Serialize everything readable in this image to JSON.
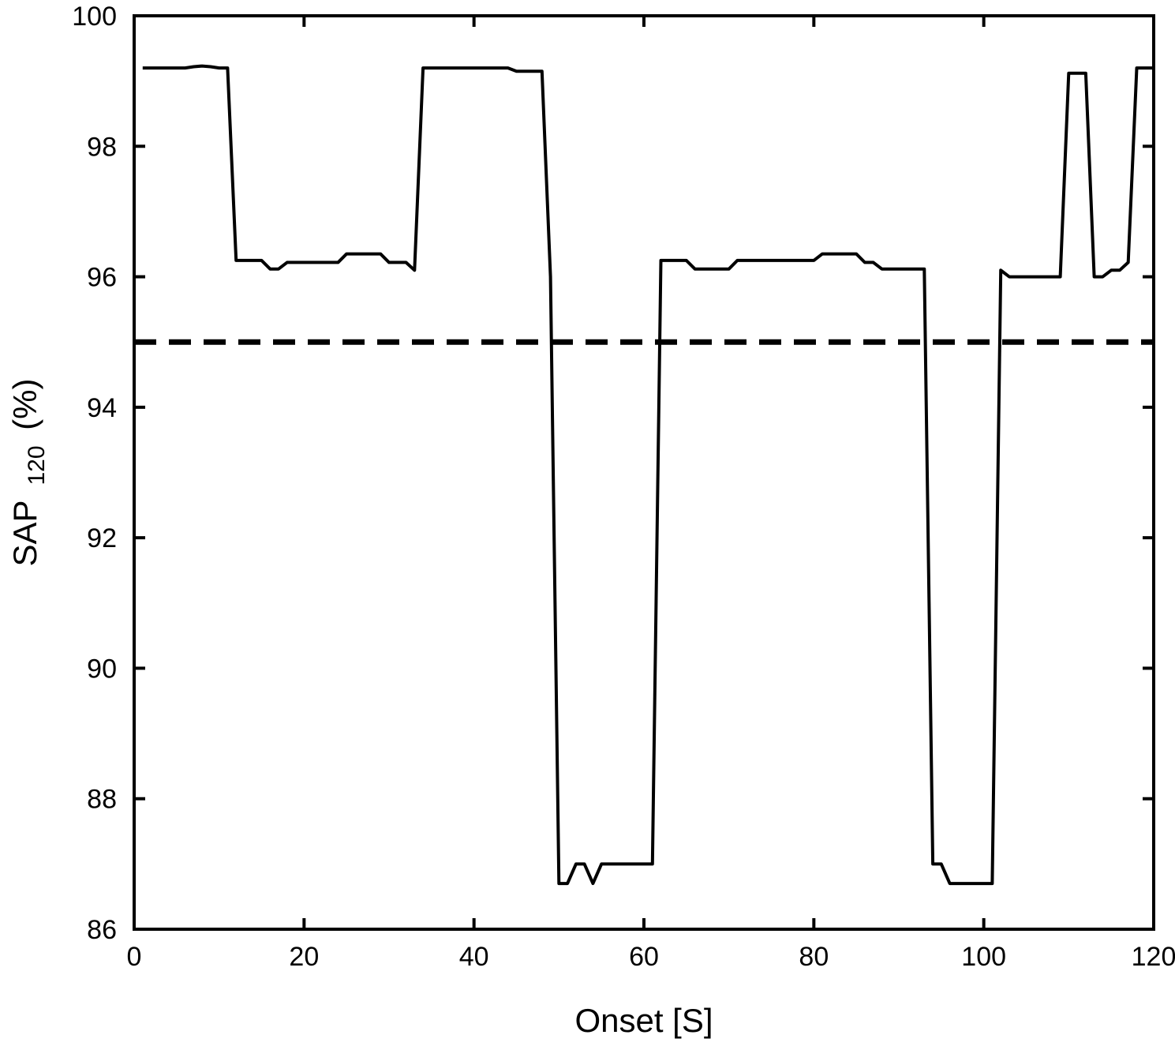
{
  "chart_data": {
    "type": "line",
    "xlabel": "Onset [S]",
    "ylabel_main": "SAP",
    "ylabel_sub": "120",
    "ylabel_unit": "(%)",
    "xlim": [
      0,
      120
    ],
    "ylim": [
      86,
      100
    ],
    "x_ticks": [
      0,
      20,
      40,
      60,
      80,
      100,
      120
    ],
    "y_ticks": [
      86,
      88,
      90,
      92,
      94,
      96,
      98,
      100
    ],
    "grid": false,
    "series": [
      {
        "style": "solid",
        "color": "#000000",
        "points": [
          [
            1,
            99.2
          ],
          [
            6,
            99.2
          ],
          [
            7,
            99.22
          ],
          [
            8,
            99.23
          ],
          [
            9,
            99.22
          ],
          [
            10,
            99.2
          ],
          [
            11,
            99.2
          ],
          [
            12,
            96.25
          ],
          [
            15,
            96.25
          ],
          [
            16,
            96.12
          ],
          [
            17,
            96.12
          ],
          [
            18,
            96.22
          ],
          [
            24,
            96.22
          ],
          [
            25,
            96.35
          ],
          [
            29,
            96.35
          ],
          [
            30,
            96.22
          ],
          [
            32,
            96.22
          ],
          [
            33,
            96.1
          ],
          [
            34,
            99.2
          ],
          [
            44,
            99.2
          ],
          [
            45,
            99.15
          ],
          [
            48,
            99.15
          ],
          [
            49,
            96.0
          ],
          [
            50,
            86.7
          ],
          [
            51,
            86.7
          ],
          [
            52,
            87.0
          ],
          [
            53,
            87.0
          ],
          [
            54,
            86.7
          ],
          [
            55,
            87.0
          ],
          [
            61,
            87.0
          ],
          [
            62,
            96.25
          ],
          [
            65,
            96.25
          ],
          [
            66,
            96.12
          ],
          [
            70,
            96.12
          ],
          [
            71,
            96.25
          ],
          [
            80,
            96.25
          ],
          [
            81,
            96.35
          ],
          [
            85,
            96.35
          ],
          [
            86,
            96.22
          ],
          [
            87,
            96.22
          ],
          [
            88,
            96.12
          ],
          [
            93,
            96.12
          ],
          [
            94,
            87.0
          ],
          [
            95,
            87.0
          ],
          [
            96,
            86.7
          ],
          [
            101,
            86.7
          ],
          [
            102,
            96.1
          ],
          [
            103,
            96.0
          ],
          [
            109,
            96.0
          ],
          [
            110,
            99.12
          ],
          [
            112,
            99.12
          ],
          [
            113,
            96.0
          ],
          [
            114,
            96.0
          ],
          [
            115,
            96.1
          ],
          [
            116,
            96.1
          ],
          [
            117,
            96.22
          ],
          [
            118,
            99.2
          ],
          [
            120,
            99.2
          ]
        ]
      },
      {
        "style": "dashed",
        "color": "#000000",
        "points": [
          [
            0,
            95
          ],
          [
            120,
            95
          ]
        ]
      }
    ]
  }
}
